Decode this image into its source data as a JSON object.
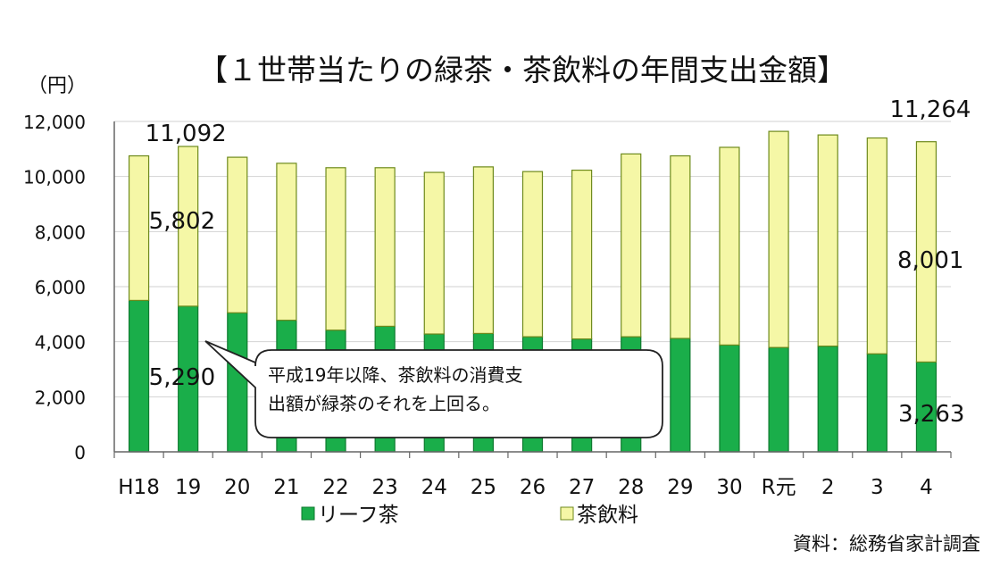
{
  "chart_data": {
    "type": "bar",
    "stacked": true,
    "title": "【１世帯当たりの緑茶・茶飲料の年間支出金額】",
    "ylabel": "（円）",
    "xlabel": "",
    "ylim": [
      0,
      12000
    ],
    "yticks": [
      "0",
      "2,000",
      "4,000",
      "6,000",
      "8,000",
      "10,000",
      "12,000"
    ],
    "ytick_values": [
      0,
      2000,
      4000,
      6000,
      8000,
      10000,
      12000
    ],
    "grid": true,
    "legend_position": "bottom",
    "categories": [
      "H18",
      "19",
      "20",
      "21",
      "22",
      "23",
      "24",
      "25",
      "26",
      "27",
      "28",
      "29",
      "30",
      "R元",
      "2",
      "3",
      "4"
    ],
    "series": [
      {
        "name": "リーフ茶",
        "color": "#1aae4a",
        "edge": "#0e7a2f",
        "values": [
          5500,
          5290,
          5050,
          4780,
          4420,
          4560,
          4280,
          4300,
          4180,
          4100,
          4180,
          4120,
          3880,
          3790,
          3840,
          3560,
          3263
        ]
      },
      {
        "name": "茶飲料",
        "color": "#f5f7a6",
        "edge": "#6e8a1c",
        "values": [
          5250,
          5802,
          5650,
          5700,
          5900,
          5760,
          5870,
          6050,
          6000,
          6130,
          6640,
          6630,
          7180,
          7850,
          7670,
          7840,
          8001
        ]
      }
    ],
    "totals": [
      10750,
      11092,
      10700,
      10480,
      10320,
      10320,
      10150,
      10350,
      10180,
      10230,
      10820,
      10750,
      11060,
      11640,
      11510,
      11400,
      11264
    ],
    "data_labels": [
      {
        "text": "11,092",
        "category": "19",
        "kind": "total"
      },
      {
        "text": "5,802",
        "category": "19",
        "kind": "segment"
      },
      {
        "text": "5,290",
        "category": "19",
        "kind": "segment"
      },
      {
        "text": "11,264",
        "category": "4",
        "kind": "total"
      },
      {
        "text": "8,001",
        "category": "4",
        "kind": "segment"
      },
      {
        "text": "3,263",
        "category": "4",
        "kind": "segment"
      }
    ],
    "annotation": {
      "lines": [
        "平成19年以降、茶飲料の消費支",
        "出額が緑茶のそれを上回る。"
      ]
    },
    "source": "資料：総務省家計調査"
  }
}
